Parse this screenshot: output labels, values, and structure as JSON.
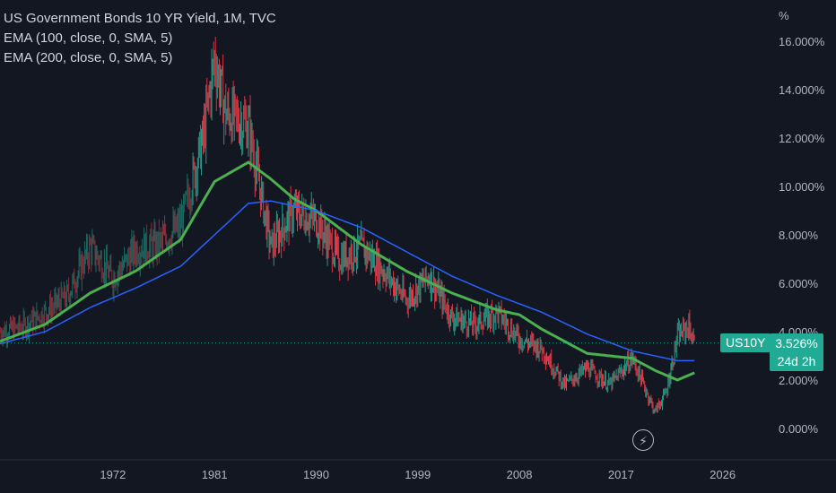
{
  "legend": {
    "title": "US Government Bonds 10 YR Yield, 1M, TVC",
    "ema100": "EMA (100, close, 0, SMA, 5)",
    "ema200": "EMA (200, close, 0, SMA, 5)"
  },
  "axis": {
    "y_unit": "%",
    "y_ticks": [
      "16.000%",
      "14.000%",
      "12.000%",
      "10.000%",
      "8.000%",
      "6.000%",
      "4.000%",
      "2.000%",
      "0.000%"
    ],
    "x_ticks": [
      "1972",
      "1981",
      "1990",
      "1999",
      "2008",
      "2017",
      "2026"
    ]
  },
  "price_label": {
    "symbol": "US10Y",
    "value": "3.526%",
    "countdown": "24d 2h"
  },
  "colors": {
    "background": "#131722",
    "up": "#22ab94",
    "down": "#f23645",
    "ema100": "#4caf50",
    "ema200": "#2962ff",
    "badge": "#22ab94"
  },
  "chart_data": {
    "type": "line",
    "title": "US Government Bonds 10 YR Yield, 1M, TVC",
    "ylabel": "%",
    "ylim": [
      -0.5,
      17
    ],
    "xlim": [
      1962,
      2030
    ],
    "series": [
      {
        "name": "US Government Bonds 10 YR Yield",
        "x": [
          1962,
          1964,
          1966,
          1968,
          1970,
          1972,
          1974,
          1976,
          1978,
          1980,
          1981,
          1982,
          1984,
          1986,
          1988,
          1990,
          1992,
          1994,
          1996,
          1998,
          2000,
          2002,
          2004,
          2006,
          2008,
          2010,
          2012,
          2014,
          2016,
          2018,
          2020,
          2021,
          2022,
          2023,
          2023.5
        ],
        "y": [
          4.0,
          4.2,
          4.8,
          5.5,
          7.5,
          6.2,
          7.4,
          7.6,
          8.4,
          12.0,
          15.3,
          13.0,
          12.5,
          7.5,
          9.0,
          8.6,
          7.0,
          7.5,
          6.5,
          5.3,
          6.3,
          4.6,
          4.3,
          4.8,
          3.7,
          3.3,
          1.8,
          2.5,
          1.8,
          2.9,
          0.7,
          1.5,
          3.8,
          4.2,
          3.5
        ]
      },
      {
        "name": "EMA (100, close, 0, SMA, 5)",
        "x": [
          1962,
          1966,
          1970,
          1974,
          1978,
          1981,
          1984,
          1986,
          1988,
          1990,
          1994,
          1998,
          2002,
          2006,
          2008,
          2010,
          2014,
          2018,
          2020,
          2022,
          2023.5
        ],
        "y": [
          3.6,
          4.3,
          5.6,
          6.5,
          7.8,
          10.2,
          11.0,
          10.3,
          9.5,
          9.0,
          7.6,
          6.5,
          5.6,
          4.9,
          4.7,
          4.1,
          3.1,
          2.9,
          2.4,
          2.0,
          2.3
        ]
      },
      {
        "name": "EMA (200, close, 0, SMA, 5)",
        "x": [
          1962,
          1966,
          1970,
          1974,
          1978,
          1981,
          1984,
          1986,
          1988,
          1990,
          1994,
          1998,
          2002,
          2006,
          2010,
          2014,
          2018,
          2020,
          2022,
          2023.5
        ],
        "y": [
          3.5,
          4.0,
          5.0,
          5.8,
          6.7,
          8.0,
          9.3,
          9.4,
          9.2,
          9.0,
          8.3,
          7.3,
          6.3,
          5.5,
          4.8,
          3.9,
          3.2,
          3.0,
          2.8,
          2.8
        ]
      }
    ]
  }
}
